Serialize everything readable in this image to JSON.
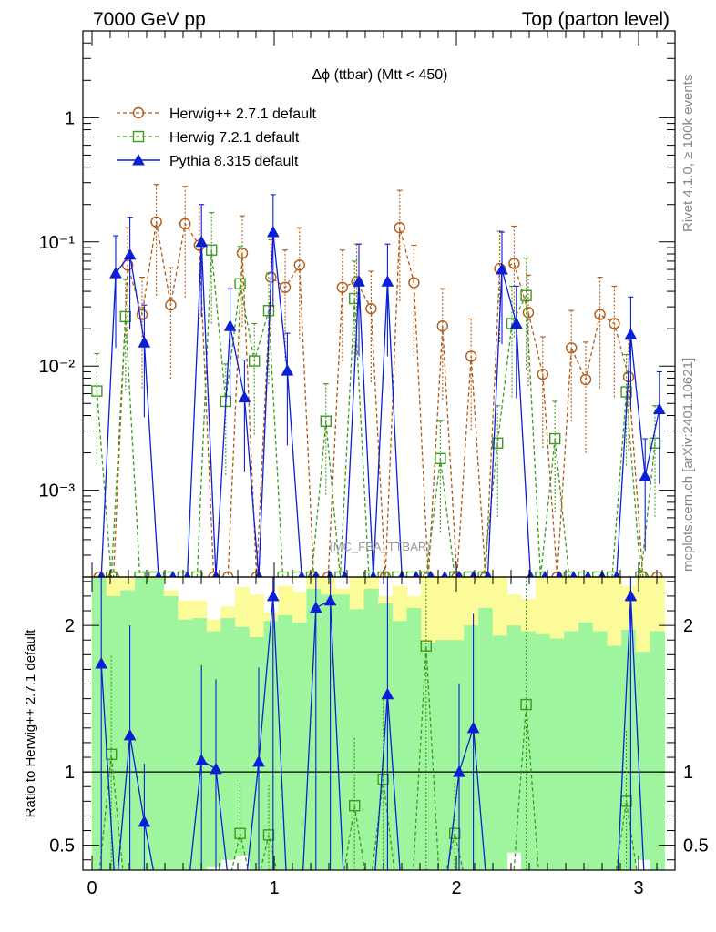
{
  "header": {
    "left": "7000 GeV pp",
    "right": "Top (parton level)"
  },
  "side_labels": {
    "rivet": "Rivet 4.1.0, ≥ 100k events",
    "mcplots": "mcplots.cern.ch [arXiv:2401.10621]"
  },
  "colors": {
    "herwigpp": "#b05a17",
    "herwig7": "#3d9a1e",
    "pythia": "#0b1fd6",
    "band_green": "#9ef59e",
    "band_yellow": "#fbfb9a"
  },
  "chart_data": [
    {
      "type": "line",
      "title": "Δϕ (ttbar) (Mtt < 450)",
      "ref_label": "(MC_FBA_TTBAR)",
      "yscale": "log",
      "xlim": [
        -0.05,
        3.2
      ],
      "ylim": [
        0.0002,
        5
      ],
      "xlabel": "",
      "ylabel": "",
      "x_ticks": [
        0,
        1,
        2,
        3
      ],
      "y_ticks": [
        {
          "value": 1,
          "label": "1"
        },
        {
          "value": 0.1,
          "label": "10⁻¹"
        },
        {
          "value": 0.01,
          "label": "10⁻²"
        },
        {
          "value": 0.001,
          "label": "10⁻³"
        }
      ],
      "legend": {
        "position": "top-left",
        "entries": [
          "Herwig++ 2.7.1 default",
          "Herwig 7.2.1 default",
          "Pythia 8.315 default"
        ]
      },
      "x": [
        0.039,
        0.118,
        0.196,
        0.275,
        0.353,
        0.432,
        0.511,
        0.589,
        0.668,
        0.746,
        0.825,
        0.903,
        0.982,
        1.06,
        1.139,
        1.217,
        1.296,
        1.374,
        1.453,
        1.532,
        1.61,
        1.689,
        1.767,
        1.846,
        1.924,
        2.003,
        2.081,
        2.16,
        2.238,
        2.317,
        2.395,
        2.474,
        2.553,
        2.631,
        2.71,
        2.788,
        2.867,
        2.945,
        3.024,
        3.102
      ],
      "series": [
        {
          "name": "Herwig++ 2.7.1 default",
          "marker": "circle",
          "values": [
            0,
            0,
            0.065,
            0.026,
            0.145,
            0.031,
            0.14,
            0.094,
            0,
            0,
            0.081,
            0,
            0.052,
            0.043,
            0.065,
            0,
            0,
            0.043,
            0.048,
            0.029,
            0,
            0.13,
            0.047,
            0,
            0.021,
            0,
            0.012,
            0,
            0.061,
            0.067,
            0.027,
            0.0086,
            0,
            0.014,
            0.0078,
            0.026,
            0.022,
            0.0082,
            0,
            0
          ]
        },
        {
          "name": "Herwig 7.2.1 default",
          "marker": "square",
          "values": [
            0.0063,
            0,
            0.025,
            0,
            0,
            0,
            0,
            0,
            0.086,
            0.0052,
            0.046,
            0.011,
            0.028,
            0,
            0,
            0,
            0.0036,
            0,
            0.035,
            0,
            0,
            0,
            0,
            0,
            0.0018,
            0,
            0,
            0,
            0.0024,
            0.022,
            0.037,
            0,
            0.0026,
            0,
            0,
            0,
            0,
            0.0062,
            0,
            0.0024
          ]
        },
        {
          "name": "Pythia 8.315 default",
          "marker": "triangle",
          "values": [
            0,
            0.056,
            0.079,
            0.0155,
            0,
            0,
            0,
            0.1,
            0,
            0.021,
            0.0056,
            0,
            0.12,
            0.0092,
            0,
            0,
            0,
            0,
            0.048,
            0,
            0.048,
            0,
            0,
            0,
            0,
            0,
            0,
            0,
            0.06,
            0.022,
            0,
            0,
            0,
            0,
            0,
            0,
            0,
            0.018,
            0.0013,
            0.0045
          ]
        }
      ]
    },
    {
      "type": "line",
      "title": "",
      "xlim": [
        -0.05,
        3.2
      ],
      "ylim": [
        0.33,
        2.33
      ],
      "ylabel": "Ratio to Herwig++ 2.7.1 default",
      "x_ticks": [
        0,
        1,
        2,
        3
      ],
      "y_ticks": [
        {
          "value": 0.5,
          "label": "0.5"
        },
        {
          "value": 1,
          "label": "1"
        },
        {
          "value": 2,
          "label": "2"
        }
      ],
      "reference_line": 1,
      "band_green_upper": [
        2.33,
        2.2,
        2.24,
        2.33,
        2.33,
        2.2,
        2.04,
        2.05,
        1.96,
        2.05,
        1.99,
        1.92,
        2.03,
        2.07,
        2.02,
        2.25,
        2.21,
        2.21,
        2.11,
        2.25,
        2.15,
        2.03,
        2.12,
        1.88,
        1.9,
        1.9,
        2.0,
        2.12,
        1.93,
        2.0,
        1.96,
        1.94,
        1.91,
        1.96,
        2.02,
        1.96,
        1.86,
        1.97,
        1.82,
        1.96
      ],
      "band_yellow_upper": [
        2.33,
        2.33,
        2.33,
        2.33,
        2.33,
        2.24,
        2.17,
        2.17,
        2.04,
        2.13,
        2.26,
        2.21,
        2.09,
        2.27,
        2.23,
        2.33,
        2.33,
        2.25,
        2.33,
        2.33,
        2.2,
        2.27,
        2.2,
        2.33,
        2.33,
        2.33,
        2.33,
        2.33,
        2.33,
        2.21,
        2.18,
        2.33,
        2.33,
        2.33,
        2.33,
        2.33,
        2.33,
        2.27,
        2.33,
        2.33
      ],
      "band_yellow_lower": [
        0.33,
        0.33,
        0.33,
        0.33,
        0.33,
        0.33,
        0.33,
        0.33,
        0.35,
        0.4,
        0.43,
        0.33,
        0.33,
        0.33,
        0.33,
        0.33,
        0.33,
        0.33,
        0.33,
        0.33,
        0.33,
        0.33,
        0.33,
        0.33,
        0.33,
        0.33,
        0.33,
        0.33,
        0.33,
        0.45,
        0.33,
        0.33,
        0.33,
        0.33,
        0.33,
        0.33,
        0.33,
        0.33,
        0.4,
        0.33
      ],
      "series": [
        {
          "name": "Herwig 7.2.1 default",
          "marker": "square",
          "values": [
            null,
            1.12,
            null,
            null,
            null,
            null,
            null,
            null,
            null,
            null,
            0.58,
            null,
            0.57,
            null,
            null,
            null,
            null,
            null,
            0.77,
            null,
            0.95,
            null,
            null,
            1.86,
            null,
            0.58,
            null,
            null,
            null,
            null,
            1.46,
            null,
            null,
            null,
            null,
            null,
            null,
            0.8,
            null,
            null
          ]
        },
        {
          "name": "Pythia 8.315 default",
          "marker": "triangle",
          "values": [
            1.74,
            null,
            1.25,
            0.66,
            null,
            null,
            null,
            1.08,
            1.02,
            null,
            null,
            1.07,
            2.2,
            null,
            null,
            2.12,
            2.17,
            null,
            null,
            null,
            1.53,
            null,
            null,
            null,
            null,
            1.0,
            1.3,
            null,
            null,
            null,
            null,
            null,
            null,
            null,
            null,
            null,
            null,
            2.2,
            null,
            null
          ]
        }
      ]
    }
  ]
}
